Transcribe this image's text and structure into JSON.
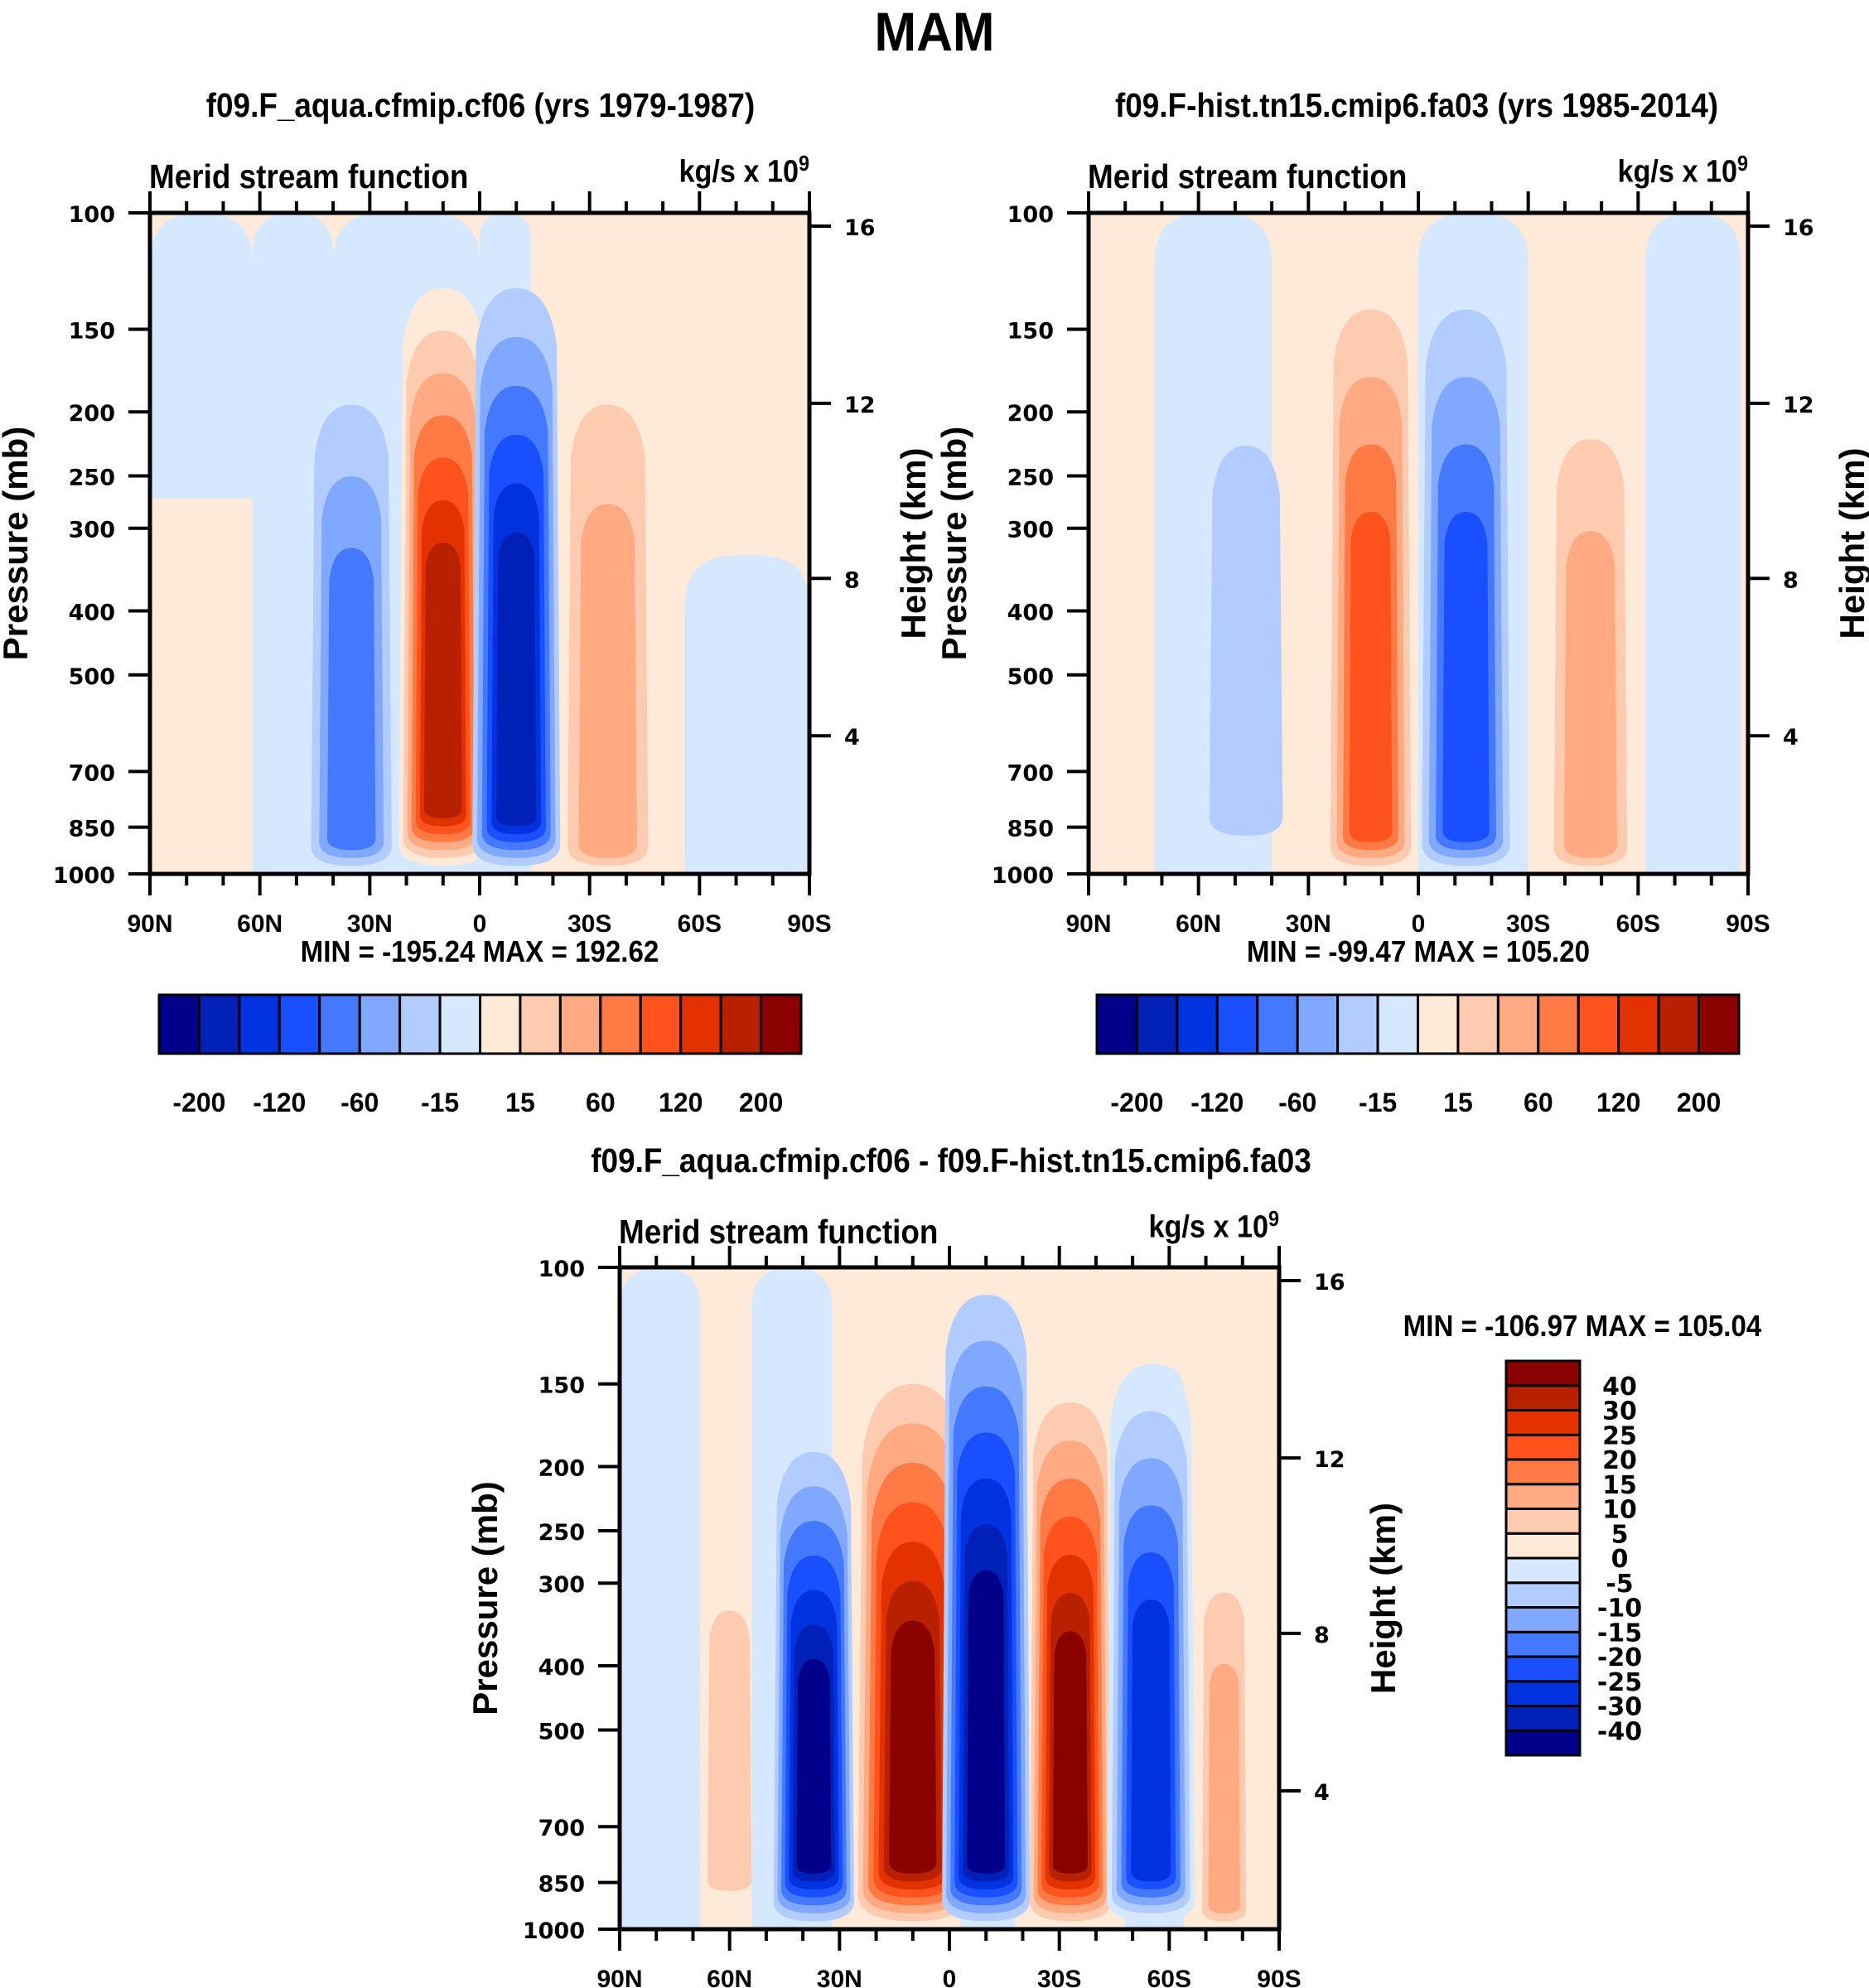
{
  "figure": {
    "title": "MAM"
  },
  "chart_data": [
    {
      "type": "heatmap",
      "panel": "top-left",
      "title": "f09.F_aqua.cfmip.cf06 (yrs 1979-1987)",
      "left_string": "Merid stream function",
      "units_base": "kg/s x 10",
      "units_exp": "9",
      "ylabel": "Pressure (mb)",
      "ylabel_right": "Height (km)",
      "xlabel": "",
      "x_ticks": [
        "90N",
        "60N",
        "30N",
        "0",
        "30S",
        "60S",
        "90S"
      ],
      "x_range_deg": [
        90,
        -90
      ],
      "y_ticks": [
        "100",
        "150",
        "200",
        "250",
        "300",
        "400",
        "500",
        "700",
        "850",
        "1000"
      ],
      "y_range_mb": [
        100,
        1000
      ],
      "y_scale": "log",
      "height_ticks_km": [
        "16",
        "12",
        "8",
        "4"
      ],
      "minmax_text": "MIN = -195.24  MAX = 192.62",
      "min": -195.24,
      "max": 192.62,
      "colorbar": {
        "orientation": "horizontal",
        "colors": [
          "#00008b",
          "#0020b8",
          "#0033e0",
          "#1a4fff",
          "#4479ff",
          "#80a8ff",
          "#b3ccff",
          "#d6e8ff",
          "#ffeada",
          "#ffcbb0",
          "#ffaa82",
          "#ff7a45",
          "#ff521c",
          "#e33200",
          "#b82100",
          "#8b0000"
        ],
        "labels": [
          "-200",
          "-120",
          "-60",
          "-15",
          "15",
          "60",
          "120",
          "200"
        ]
      },
      "cells": [
        {
          "lat": 35,
          "p_top": 195,
          "p_bot": 1000,
          "halfwidth": 11,
          "levels": [
            6,
            5,
            4
          ],
          "core_lat": 37,
          "sign": "neg"
        },
        {
          "lat": 10,
          "p_top": 130,
          "p_bot": 1000,
          "halfwidth": 12,
          "levels": [
            8,
            9,
            10,
            11,
            12,
            13,
            14
          ],
          "sign": "pos"
        },
        {
          "lat": -10,
          "p_top": 130,
          "p_bot": 1000,
          "halfwidth": 12,
          "levels": [
            6,
            5,
            4,
            3,
            2,
            1
          ],
          "sign": "neg"
        },
        {
          "lat": -35,
          "p_top": 195,
          "p_bot": 1000,
          "halfwidth": 11,
          "levels": [
            9,
            10
          ],
          "sign": "pos"
        }
      ]
    },
    {
      "type": "heatmap",
      "panel": "top-right",
      "title": "f09.F-hist.tn15.cmip6.fa03 (yrs 1985-2014)",
      "left_string": "Merid stream function",
      "units_base": "kg/s x 10",
      "units_exp": "9",
      "ylabel": "Pressure (mb)",
      "ylabel_right": "Height (km)",
      "x_ticks": [
        "90N",
        "60N",
        "30N",
        "0",
        "30S",
        "60S",
        "90S"
      ],
      "x_range_deg": [
        90,
        -90
      ],
      "y_ticks": [
        "100",
        "150",
        "200",
        "250",
        "300",
        "400",
        "500",
        "700",
        "850",
        "1000"
      ],
      "y_range_mb": [
        100,
        1000
      ],
      "y_scale": "log",
      "height_ticks_km": [
        "16",
        "12",
        "8",
        "4"
      ],
      "minmax_text": "MIN = -99.47  MAX = 105.20",
      "min": -99.47,
      "max": 105.2,
      "colorbar": {
        "orientation": "horizontal",
        "colors": [
          "#00008b",
          "#0020b8",
          "#0033e0",
          "#1a4fff",
          "#4479ff",
          "#80a8ff",
          "#b3ccff",
          "#d6e8ff",
          "#ffeada",
          "#ffcbb0",
          "#ffaa82",
          "#ff7a45",
          "#ff521c",
          "#e33200",
          "#b82100",
          "#8b0000"
        ],
        "labels": [
          "-200",
          "-120",
          "-60",
          "-15",
          "15",
          "60",
          "120",
          "200"
        ]
      },
      "cells": [
        {
          "lat": 47,
          "p_top": 225,
          "p_bot": 900,
          "halfwidth": 10,
          "levels": [
            6
          ],
          "sign": "neg"
        },
        {
          "lat": 13,
          "p_top": 140,
          "p_bot": 1000,
          "halfwidth": 11,
          "levels": [
            9,
            10,
            11,
            12
          ],
          "sign": "pos"
        },
        {
          "lat": -13,
          "p_top": 140,
          "p_bot": 1000,
          "halfwidth": 12,
          "levels": [
            6,
            5,
            4,
            3
          ],
          "sign": "neg"
        },
        {
          "lat": -47,
          "p_top": 220,
          "p_bot": 1000,
          "halfwidth": 10,
          "levels": [
            9,
            10
          ],
          "sign": "pos"
        }
      ]
    },
    {
      "type": "heatmap",
      "panel": "bottom",
      "title": "f09.F_aqua.cfmip.cf06 - f09.F-hist.tn15.cmip6.fa03",
      "left_string": "Merid stream function",
      "units_base": "kg/s x 10",
      "units_exp": "9",
      "ylabel": "Pressure (mb)",
      "ylabel_right": "Height (km)",
      "x_ticks": [
        "90N",
        "60N",
        "30N",
        "0",
        "30S",
        "60S",
        "90S"
      ],
      "x_range_deg": [
        90,
        -90
      ],
      "y_ticks": [
        "100",
        "150",
        "200",
        "250",
        "300",
        "400",
        "500",
        "700",
        "850",
        "1000"
      ],
      "y_range_mb": [
        100,
        1000
      ],
      "y_scale": "log",
      "height_ticks_km": [
        "16",
        "12",
        "8",
        "4"
      ],
      "minmax_text": "MIN = -106.97  MAX = 105.04",
      "min": -106.97,
      "max": 105.04,
      "colorbar": {
        "orientation": "vertical",
        "colors": [
          "#00008b",
          "#0020b8",
          "#0033e0",
          "#1a4fff",
          "#4479ff",
          "#80a8ff",
          "#b3ccff",
          "#d6e8ff",
          "#ffeada",
          "#ffcbb0",
          "#ffaa82",
          "#ff7a45",
          "#ff521c",
          "#e33200",
          "#b82100",
          "#8b0000"
        ],
        "labels": [
          "-40",
          "-30",
          "-25",
          "-20",
          "-15",
          "-10",
          "-5",
          "0",
          "5",
          "10",
          "15",
          "20",
          "25",
          "30",
          "40"
        ]
      },
      "cells": [
        {
          "lat": 60,
          "p_top": 330,
          "p_bot": 900,
          "halfwidth": 6,
          "levels": [
            9
          ],
          "sign": "pos"
        },
        {
          "lat": 37,
          "p_top": 190,
          "p_bot": 1000,
          "halfwidth": 11,
          "levels": [
            6,
            5,
            4,
            3,
            2,
            1,
            0
          ],
          "sign": "neg"
        },
        {
          "lat": 10,
          "p_top": 150,
          "p_bot": 1000,
          "halfwidth": 15,
          "levels": [
            9,
            10,
            11,
            12,
            13,
            14,
            15
          ],
          "sign": "pos"
        },
        {
          "lat": -10,
          "p_top": 110,
          "p_bot": 1000,
          "halfwidth": 12,
          "levels": [
            6,
            5,
            4,
            3,
            2,
            1,
            0
          ],
          "sign": "neg"
        },
        {
          "lat": -33,
          "p_top": 160,
          "p_bot": 1000,
          "halfwidth": 11,
          "levels": [
            9,
            10,
            11,
            12,
            13,
            14,
            15
          ],
          "sign": "pos"
        },
        {
          "lat": -55,
          "p_top": 140,
          "p_bot": 1000,
          "halfwidth": 12,
          "levels": [
            7,
            6,
            5,
            4,
            3,
            2
          ],
          "sign": "neg"
        },
        {
          "lat": -75,
          "p_top": 310,
          "p_bot": 1000,
          "halfwidth": 6,
          "levels": [
            9,
            10
          ],
          "sign": "pos"
        }
      ]
    }
  ]
}
